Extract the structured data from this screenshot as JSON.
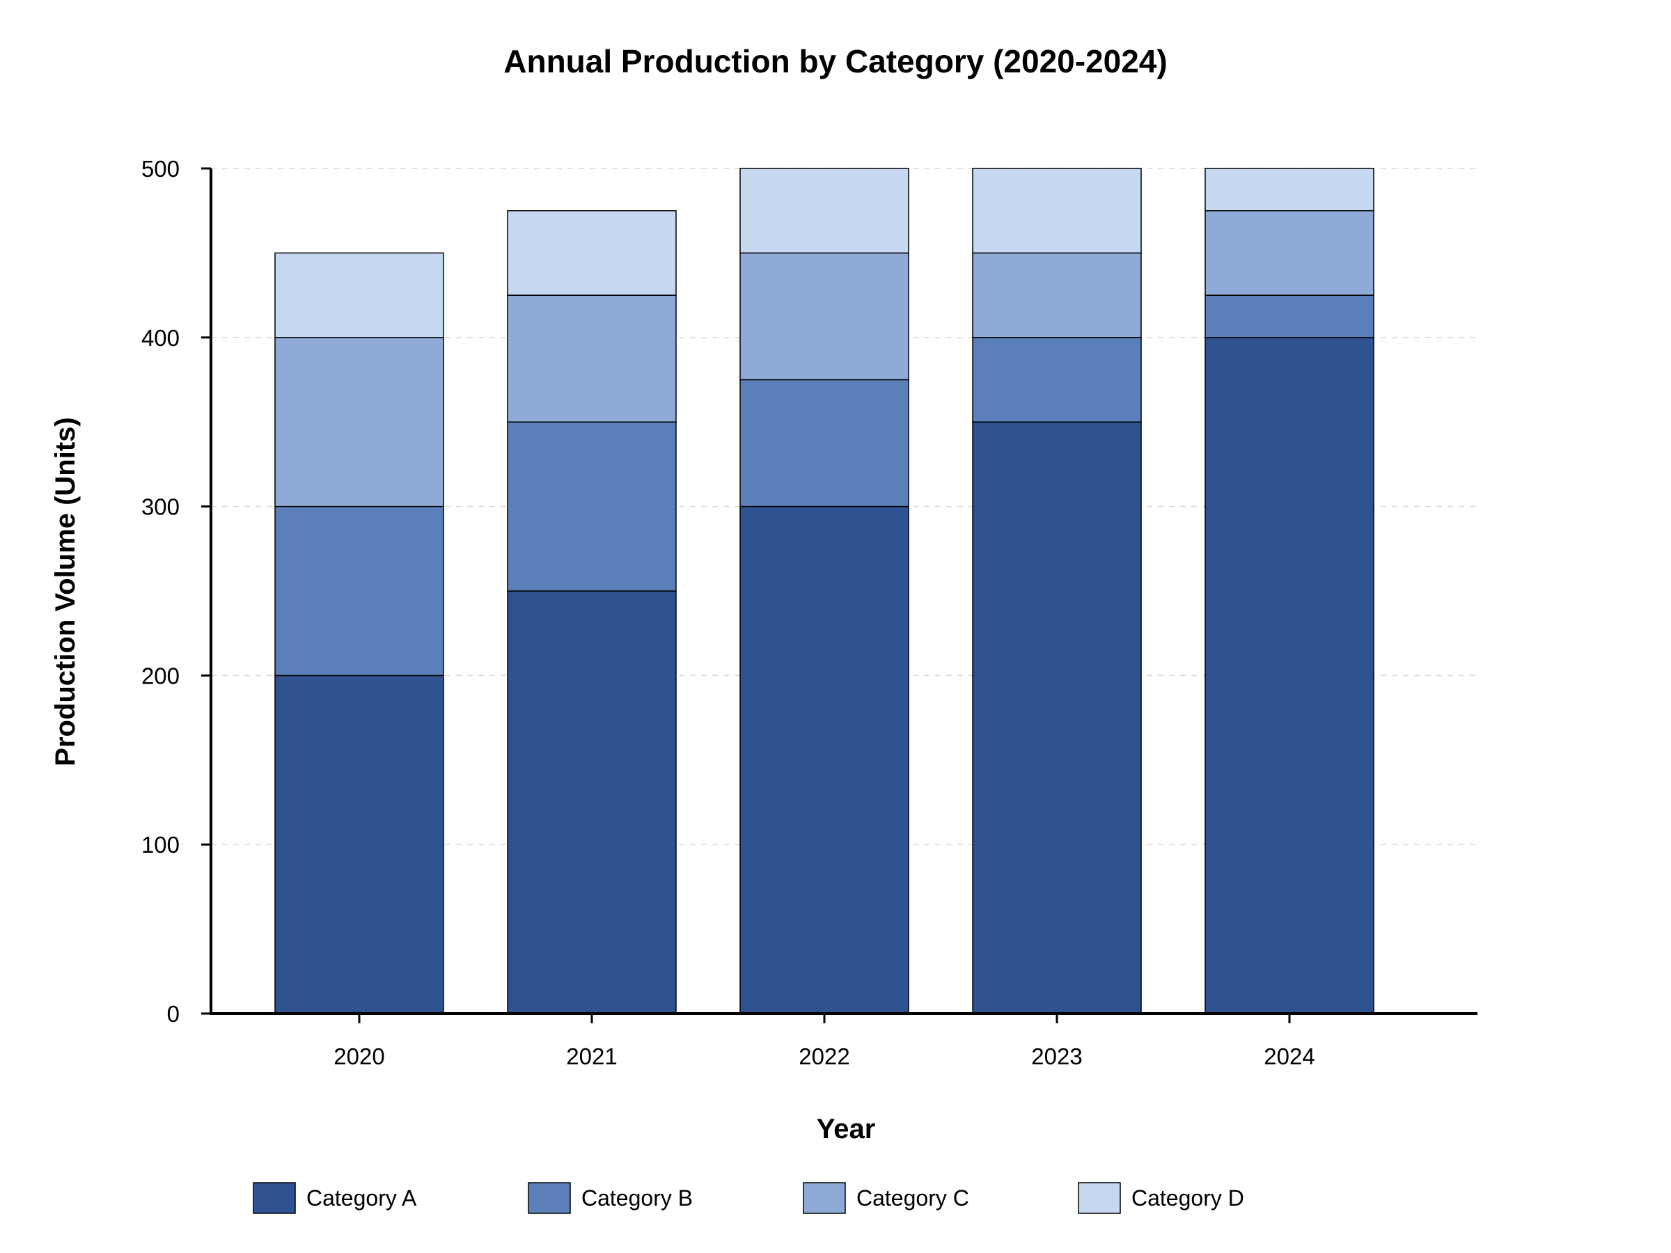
{
  "chart_data": {
    "type": "bar",
    "stacked": true,
    "title": "Annual Production by Category (2020-2024)",
    "xlabel": "Year",
    "ylabel": "Production Volume (Units)",
    "categories": [
      "2020",
      "2021",
      "2022",
      "2023",
      "2024"
    ],
    "series": [
      {
        "name": "Category A",
        "color": "#2f5290",
        "values": [
          200,
          250,
          300,
          350,
          400
        ]
      },
      {
        "name": "Category B",
        "color": "#5b7fb9",
        "values": [
          100,
          100,
          75,
          50,
          25
        ]
      },
      {
        "name": "Category C",
        "color": "#8faad6",
        "values": [
          100,
          75,
          75,
          50,
          50
        ]
      },
      {
        "name": "Category D",
        "color": "#c5d8f0",
        "values": [
          50,
          50,
          50,
          50,
          25
        ]
      }
    ],
    "ylim": [
      0,
      500
    ],
    "yticks": [
      0,
      100,
      200,
      300,
      400,
      500
    ],
    "grid": true,
    "legend_position": "bottom"
  }
}
